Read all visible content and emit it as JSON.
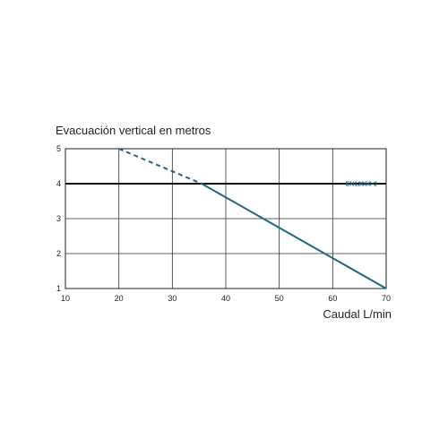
{
  "chart_data": {
    "type": "line",
    "title": "Evacuación vertical en metros",
    "xlabel": "Caudal L/min",
    "ylabel": "",
    "xlim": [
      10,
      70
    ],
    "ylim": [
      1,
      5
    ],
    "x_ticks": [
      "10",
      "20",
      "30",
      "40",
      "50",
      "60",
      "70"
    ],
    "y_ticks": [
      "1",
      "2",
      "3",
      "4",
      "5"
    ],
    "grid": true,
    "series": [
      {
        "style": "dashed",
        "color": "#1e6680",
        "x": [
          20,
          35.5
        ],
        "y": [
          5,
          4
        ]
      },
      {
        "style": "solid",
        "color": "#1e6680",
        "x": [
          35.5,
          70
        ],
        "y": [
          4,
          1
        ]
      }
    ],
    "reference_line": {
      "label": "EN12050-2",
      "y": 4,
      "color": "#111111",
      "label_color": "#1e6680"
    }
  }
}
